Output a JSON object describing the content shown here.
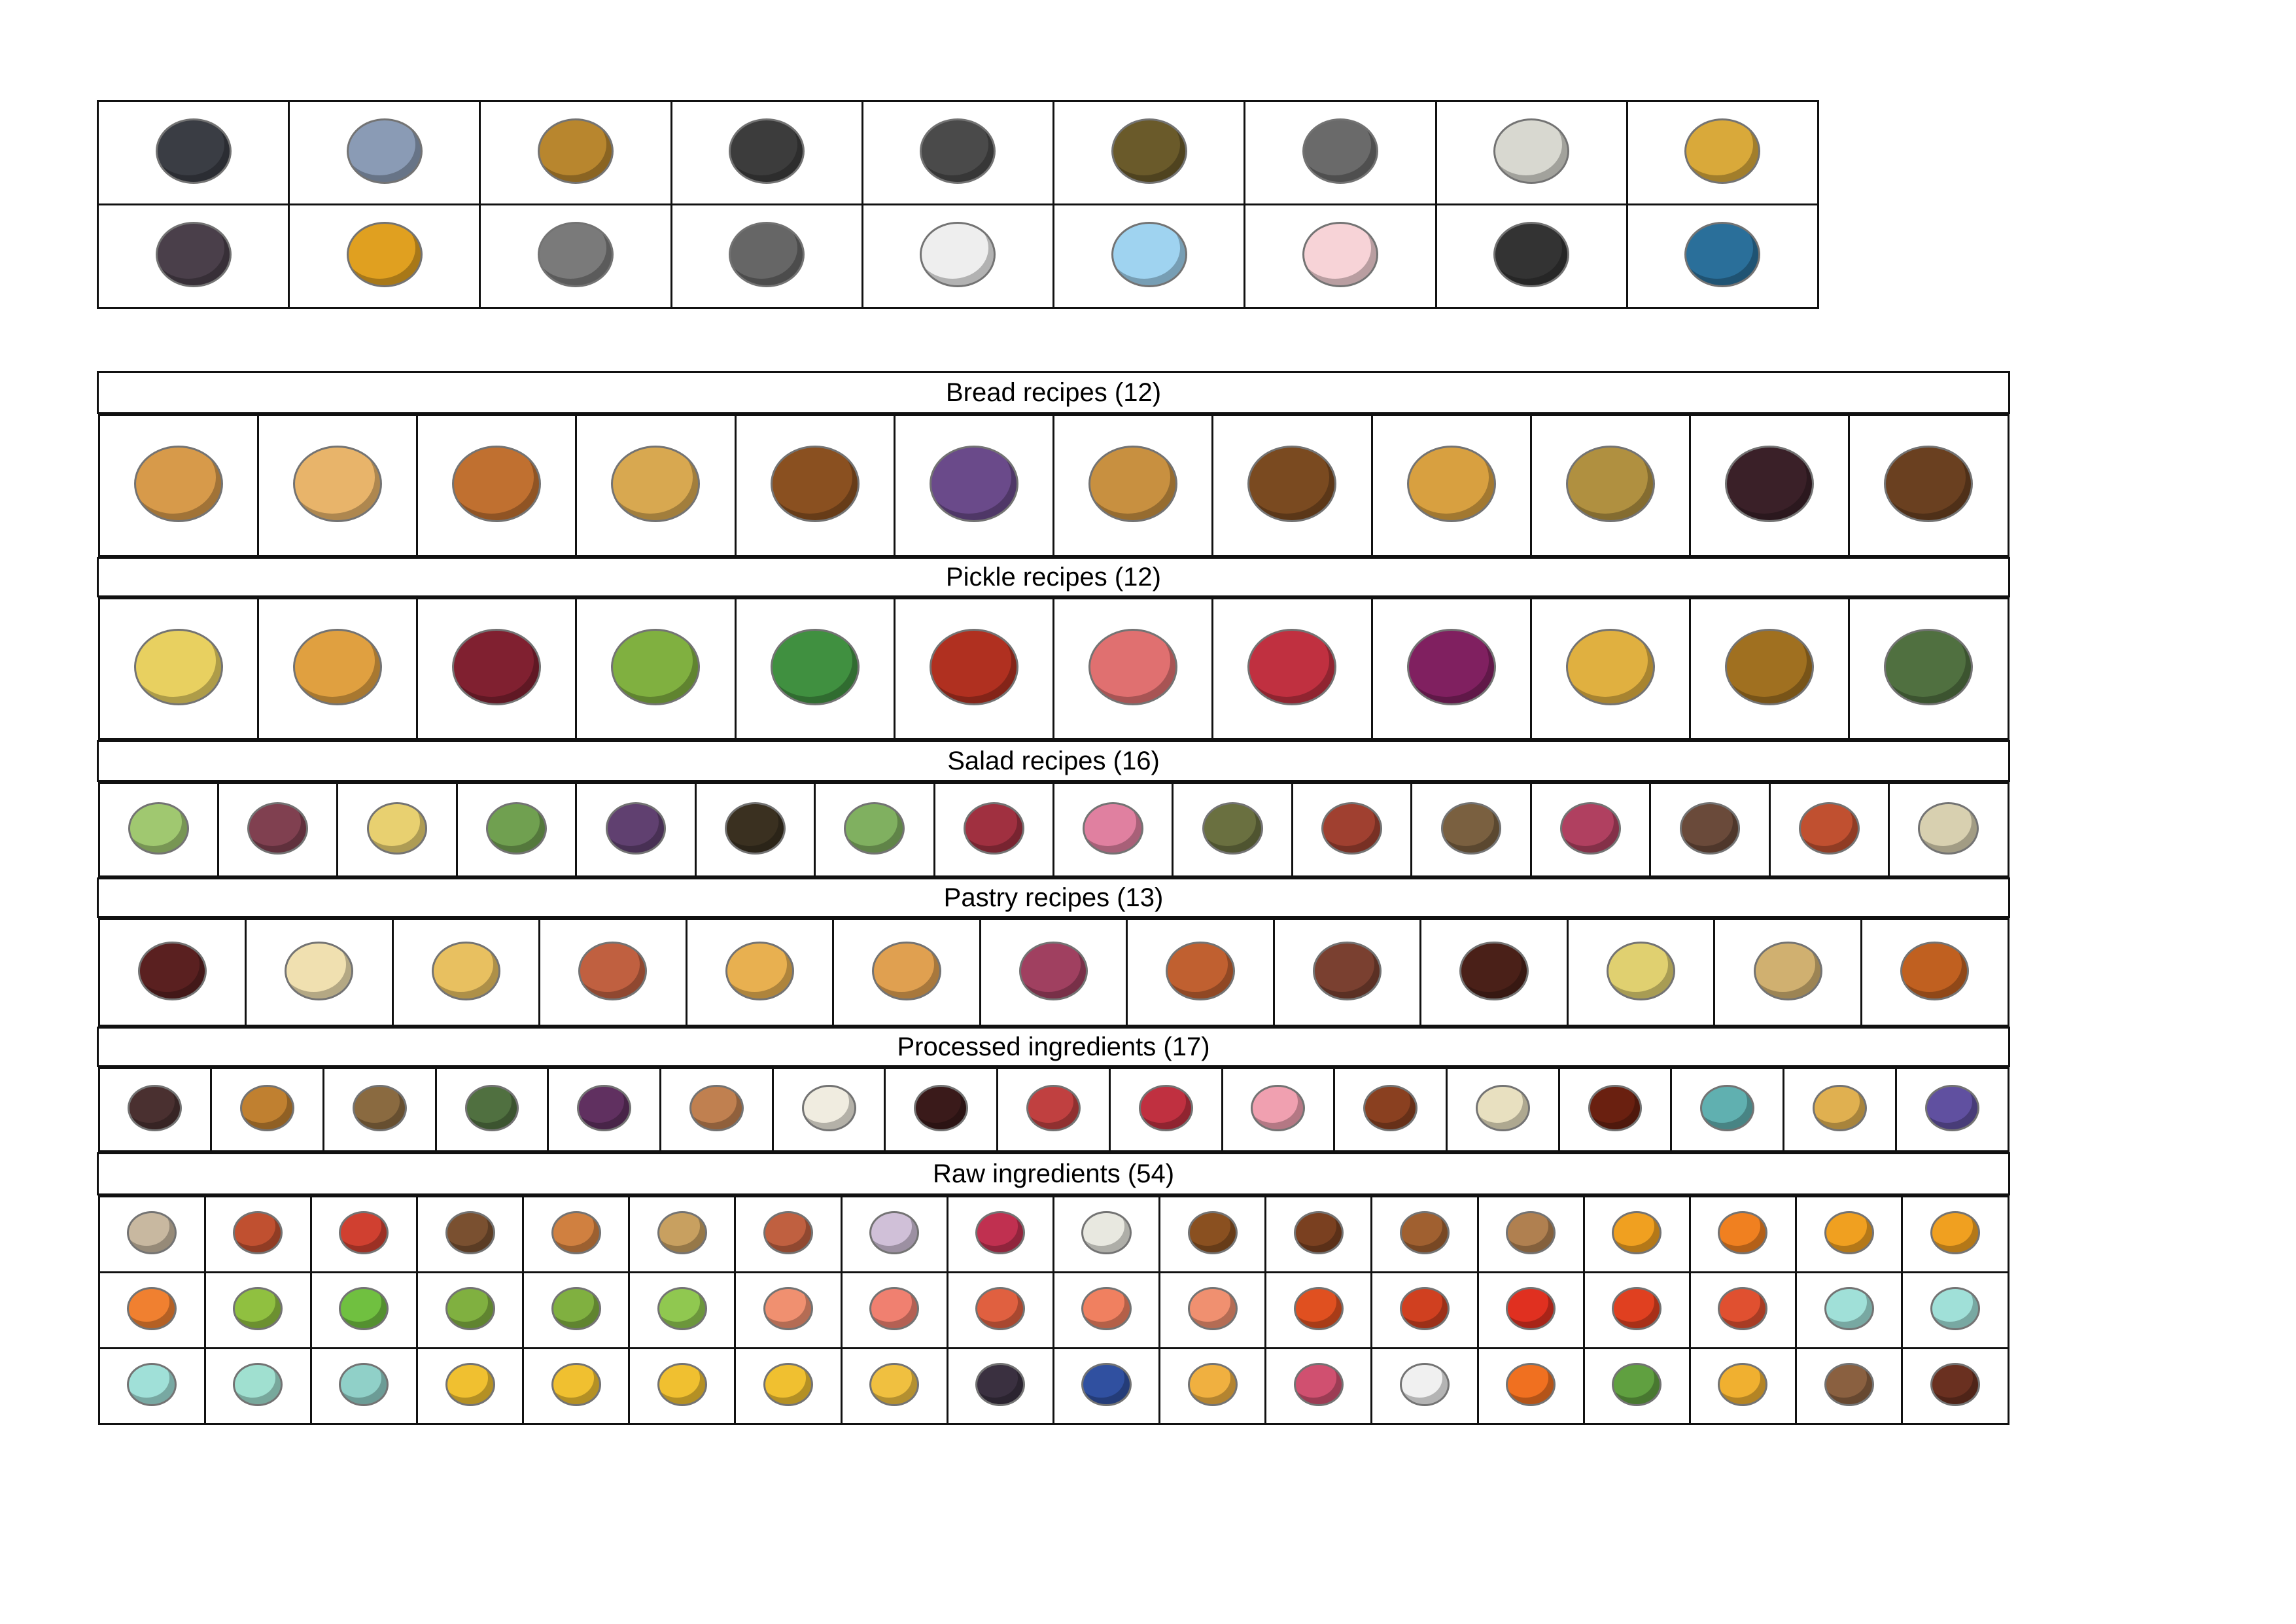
{
  "materials_table": {
    "rows": [
      [
        [
          "dark-stone",
          "#3a3d44"
        ],
        [
          "blue-stone",
          "#8a9bb5"
        ],
        [
          "gold-stone",
          "#b8862e"
        ],
        [
          "coal-ore",
          "#3c3c3c"
        ],
        [
          "iron-ore",
          "#4a4a4a"
        ],
        [
          "gold-ore",
          "#6a5a2a"
        ],
        [
          "iron-ingot",
          "#6a6a6a"
        ],
        [
          "silver-ingot",
          "#d8d8d0"
        ],
        [
          "gold-ingot",
          "#d9a93a"
        ]
      ],
      [
        [
          "dark-gear",
          "#4a3f4a"
        ],
        [
          "gold-gear",
          "#e0a020"
        ],
        [
          "fish-bone",
          "#7a7a7a"
        ],
        [
          "ash-pile",
          "#666666"
        ],
        [
          "snowflake",
          "#eeeeee"
        ],
        [
          "water-bubble",
          "#9fd3f0"
        ],
        [
          "pink-pearl",
          "#f7d3d7"
        ],
        [
          "photographs",
          "#333333"
        ],
        [
          "ink-bottle",
          "#2a6f9a"
        ]
      ]
    ]
  },
  "sections": [
    {
      "title": "Bread recipes (12)",
      "items": [
        [
          "bagel",
          "#d79a4a"
        ],
        [
          "glazed-bagel",
          "#e8b46a"
        ],
        [
          "flower-bread",
          "#c07030"
        ],
        [
          "bun",
          "#d8a850"
        ],
        [
          "cross-loaf",
          "#8a5020"
        ],
        [
          "berry-bread",
          "#6a4a8a"
        ],
        [
          "loaf",
          "#c89040"
        ],
        [
          "dark-loaf",
          "#7a4a20"
        ],
        [
          "herb-bread",
          "#d8a040"
        ],
        [
          "taco",
          "#b09040"
        ],
        [
          "chocolate-cake",
          "#3a2028"
        ],
        [
          "pancake-stack",
          "#6a4020"
        ]
      ]
    },
    {
      "title": "Pickle recipes (12)",
      "items": [
        [
          "yellow-pickle-jar",
          "#e8d060"
        ],
        [
          "orange-pickle-jar",
          "#e0a040"
        ],
        [
          "devil-pickle-jar",
          "#802030"
        ],
        [
          "green-pickle-jar",
          "#80b040"
        ],
        [
          "cucumber-pickle-jar",
          "#409040"
        ],
        [
          "tomato-pickle-jar",
          "#b03020"
        ],
        [
          "pink-pickle-jar",
          "#e07070"
        ],
        [
          "red-pickle-jar",
          "#c03040"
        ],
        [
          "purple-pickle-jar",
          "#802060"
        ],
        [
          "fries-basket",
          "#e0b040"
        ],
        [
          "stew-bowl",
          "#a07020"
        ],
        [
          "green-bowl",
          "#507040"
        ]
      ]
    },
    {
      "title": "Salad recipes (16)",
      "items": [
        [
          "green-salad",
          "#a0c870"
        ],
        [
          "mixed-salad",
          "#804050"
        ],
        [
          "egg-salad",
          "#e8d070"
        ],
        [
          "leaf-salad",
          "#70a050"
        ],
        [
          "purple-salad",
          "#604070"
        ],
        [
          "burnt-salad",
          "#3a3020"
        ],
        [
          "veggie-salad",
          "#80b060"
        ],
        [
          "berry-salad",
          "#a03040"
        ],
        [
          "flower-salad",
          "#e080a0"
        ],
        [
          "herb-salad",
          "#6a7040"
        ],
        [
          "tomato-salad",
          "#a04030"
        ],
        [
          "garden-salad",
          "#7a6040"
        ],
        [
          "radish-salad",
          "#b04060"
        ],
        [
          "mushroom-salad",
          "#6a4a3a"
        ],
        [
          "fruit-salad",
          "#c05030"
        ],
        [
          "dumpling-plate",
          "#d8d0b0"
        ]
      ]
    },
    {
      "title": "Pastry recipes (13)",
      "items": [
        [
          "chocolate-heart",
          "#5a2020"
        ],
        [
          "custard-pudding",
          "#f0e0b0"
        ],
        [
          "caramel-flan",
          "#e8c060"
        ],
        [
          "layered-cake",
          "#c06040"
        ],
        [
          "jam-tart",
          "#e8b050"
        ],
        [
          "flower-tart",
          "#e0a050"
        ],
        [
          "gift-cake",
          "#a04060"
        ],
        [
          "cherry-pie",
          "#c06030"
        ],
        [
          "chocolate-tart",
          "#7a4030"
        ],
        [
          "chocolate-cake",
          "#4a2018"
        ],
        [
          "fruit-parfait",
          "#e0d070"
        ],
        [
          "potion-bottle",
          "#d0b070"
        ],
        [
          "pumpkin-dish",
          "#c06020"
        ]
      ]
    },
    {
      "title": "Processed ingredients (17)",
      "items": [
        [
          "cooking-pot",
          "#4a3030"
        ],
        [
          "cornucopia",
          "#c08030"
        ],
        [
          "flour-sack",
          "#8a6a40"
        ],
        [
          "herbs",
          "#507040"
        ],
        [
          "purple-cabbage",
          "#603060"
        ],
        [
          "egg",
          "#c08050"
        ],
        [
          "white-egg",
          "#f0ece0"
        ],
        [
          "devil-egg",
          "#3a1a1a"
        ],
        [
          "berry-basket",
          "#c04040"
        ],
        [
          "jam-jar",
          "#c03040"
        ],
        [
          "pink-potion",
          "#f0a0b0"
        ],
        [
          "kebab",
          "#8a4020"
        ],
        [
          "tofu",
          "#e8e0c0"
        ],
        [
          "sauce-bottle",
          "#6a2010"
        ],
        [
          "nut-bowl",
          "#60b0b0"
        ],
        [
          "soup-bowl",
          "#e0b050"
        ],
        [
          "purple-bowl",
          "#6050a0"
        ]
      ]
    },
    {
      "title": "Raw ingredients (54)",
      "items": [
        [
          "mushroom",
          "#c8b8a0"
        ],
        [
          "red-mushroom",
          "#c05030"
        ],
        [
          "fly-agaric",
          "#d04030"
        ],
        [
          "porcini",
          "#7a5030"
        ],
        [
          "chanterelle",
          "#d08040"
        ],
        [
          "potato",
          "#c8a060"
        ],
        [
          "sweet-potato",
          "#c06040"
        ],
        [
          "turnip",
          "#d0c0d8"
        ],
        [
          "radish",
          "#c03050"
        ],
        [
          "white-radish",
          "#e8e8e0"
        ],
        [
          "acorn",
          "#8a5020"
        ],
        [
          "chestnut",
          "#7a4020"
        ],
        [
          "almond",
          "#a06030"
        ],
        [
          "walnut",
          "#b08050"
        ],
        [
          "lemon",
          "#f0a020"
        ],
        [
          "orange",
          "#f08020"
        ],
        [
          "yellow-pear",
          "#f0a020"
        ],
        [
          "mango",
          "#f0a020"
        ],
        [
          "peach",
          "#f08030"
        ],
        [
          "lime",
          "#90c040"
        ],
        [
          "green-apple",
          "#70c040"
        ],
        [
          "green-pear",
          "#80b040"
        ],
        [
          "green-mango",
          "#80b040"
        ],
        [
          "green-plum",
          "#90c850"
        ],
        [
          "apricot",
          "#f09070"
        ],
        [
          "pink-apple",
          "#f08070"
        ],
        [
          "red-pear",
          "#e06040"
        ],
        [
          "red-mango",
          "#f08060"
        ],
        [
          "nectarine",
          "#f09070"
        ],
        [
          "red-lemon",
          "#e05020"
        ],
        [
          "red-pear-2",
          "#d04020"
        ],
        [
          "red-apple",
          "#e03020"
        ],
        [
          "red-plum",
          "#e04020"
        ],
        [
          "red-orange",
          "#e05030"
        ],
        [
          "blue-lemon",
          "#a0e0d8"
        ],
        [
          "blue-pear",
          "#a0e0d8"
        ],
        [
          "blue-apple",
          "#a0e0d8"
        ],
        [
          "blue-peach",
          "#a0e0d0"
        ],
        [
          "blue-mango",
          "#90d0c8"
        ],
        [
          "yellow-lemon",
          "#f0c030"
        ],
        [
          "yellow-pear-2",
          "#f0c030"
        ],
        [
          "yellow-apple",
          "#f0c030"
        ],
        [
          "yellow-mango",
          "#f0c030"
        ],
        [
          "yellow-peach",
          "#f0c040"
        ],
        [
          "blackberry",
          "#3a3040"
        ],
        [
          "blueberry",
          "#3050a0"
        ],
        [
          "physalis",
          "#f0b040"
        ],
        [
          "raspberry",
          "#d05070"
        ],
        [
          "cotton",
          "#f0f0f0"
        ],
        [
          "pumpkin",
          "#f07020"
        ],
        [
          "lettuce",
          "#60a040"
        ],
        [
          "yellow-onion",
          "#f0b030"
        ],
        [
          "salt-spoon",
          "#8a6040"
        ],
        [
          "coffee-beans",
          "#6a3020"
        ]
      ]
    }
  ]
}
